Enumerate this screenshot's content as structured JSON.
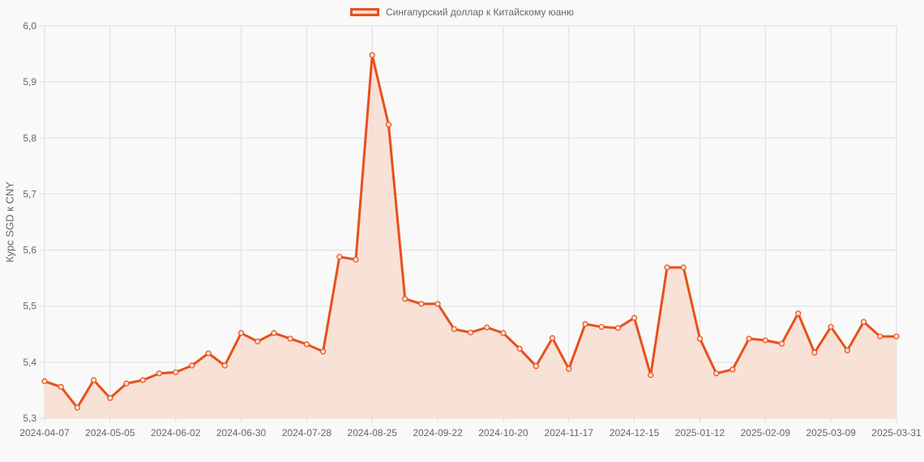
{
  "legend": {
    "label": "Сингапурский доллар к Китайскому юаню"
  },
  "colors": {
    "line": "#e8501a",
    "fill": "#f8ddd1",
    "grid": "#dddddd",
    "background": "#f9f9f9",
    "text": "#666666"
  },
  "chart_data": {
    "type": "line",
    "title": "",
    "xlabel": "",
    "ylabel": "Курс SGD к CNY",
    "ylim": [
      5.3,
      6.0
    ],
    "yticks": [
      "6,0",
      "5,9",
      "5,8",
      "5,7",
      "5,6",
      "5,5",
      "5,4",
      "5,3"
    ],
    "ytick_values": [
      6.0,
      5.9,
      5.8,
      5.7,
      5.6,
      5.5,
      5.4,
      5.3
    ],
    "xtick_labels": [
      "2024-04-07",
      "2024-05-05",
      "2024-06-02",
      "2024-06-30",
      "2024-07-28",
      "2024-08-25",
      "2024-09-22",
      "2024-10-20",
      "2024-11-17",
      "2024-12-15",
      "2025-01-12",
      "2025-02-09",
      "2025-03-09",
      "2025-03-31"
    ],
    "xtick_indices": [
      0,
      4,
      8,
      12,
      16,
      20,
      24,
      28,
      32,
      36,
      40,
      44,
      48,
      52
    ],
    "grid": true,
    "legend_position": "top",
    "fill": true,
    "series": [
      {
        "name": "Сингапурский доллар к Китайскому юаню",
        "values": [
          5.366,
          5.356,
          5.319,
          5.368,
          5.336,
          5.362,
          5.368,
          5.38,
          5.382,
          5.394,
          5.416,
          5.394,
          5.452,
          5.437,
          5.452,
          5.442,
          5.432,
          5.419,
          5.588,
          5.583,
          5.948,
          5.824,
          5.513,
          5.504,
          5.504,
          5.459,
          5.453,
          5.462,
          5.452,
          5.424,
          5.393,
          5.443,
          5.388,
          5.468,
          5.463,
          5.461,
          5.479,
          5.377,
          5.569,
          5.569,
          5.442,
          5.38,
          5.387,
          5.442,
          5.439,
          5.433,
          5.487,
          5.417,
          5.463,
          5.421,
          5.472,
          5.446,
          5.446
        ]
      }
    ]
  }
}
